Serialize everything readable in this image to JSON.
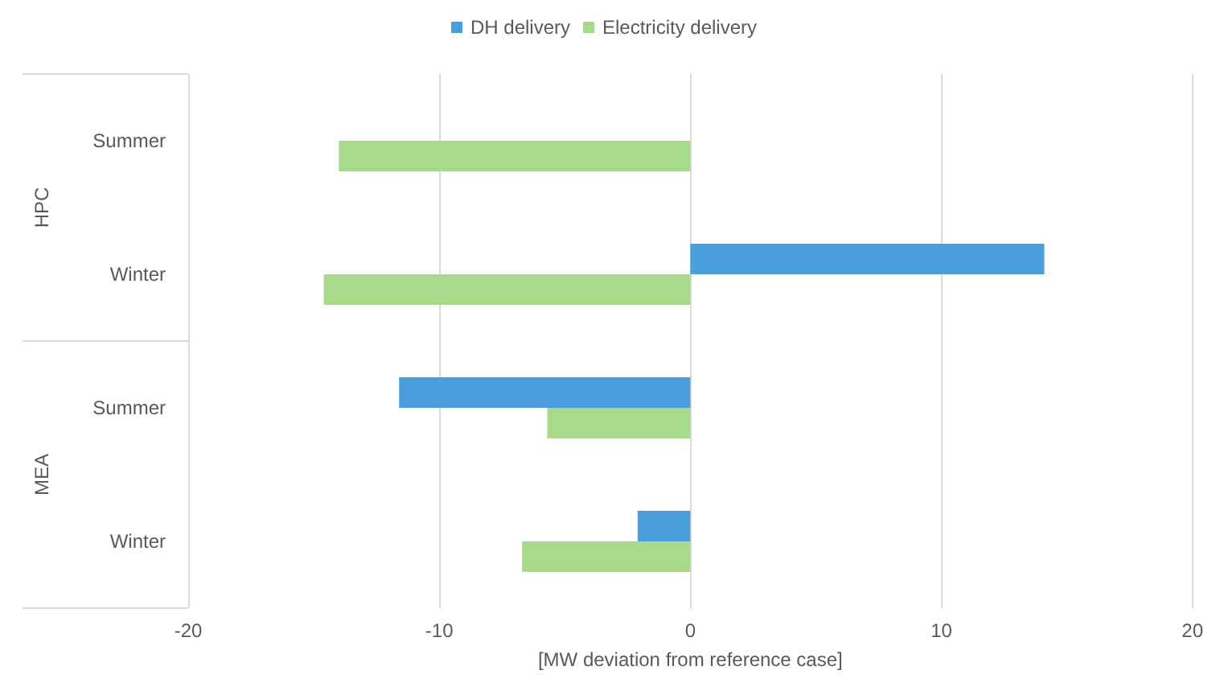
{
  "chart_data": {
    "type": "bar",
    "orientation": "horizontal",
    "xlabel": "[MW deviation from reference case]",
    "categories": [
      "Summer",
      "Winter",
      "Summer",
      "Winter"
    ],
    "annotations": [
      "HPC",
      "MEA"
    ],
    "series": [
      {
        "name": "DH delivery",
        "color": "#4a9edb",
        "values": [
          null,
          14.1,
          -11.6,
          -2.1
        ]
      },
      {
        "name": "Electricity delivery",
        "color": "#a9d98a",
        "values": [
          -14,
          -14.6,
          -5.7,
          -6.7
        ]
      }
    ],
    "xlim": [
      -20,
      20
    ],
    "xticks": [
      -20,
      -10,
      0,
      10,
      20
    ],
    "grid": "x",
    "legend": "top"
  }
}
